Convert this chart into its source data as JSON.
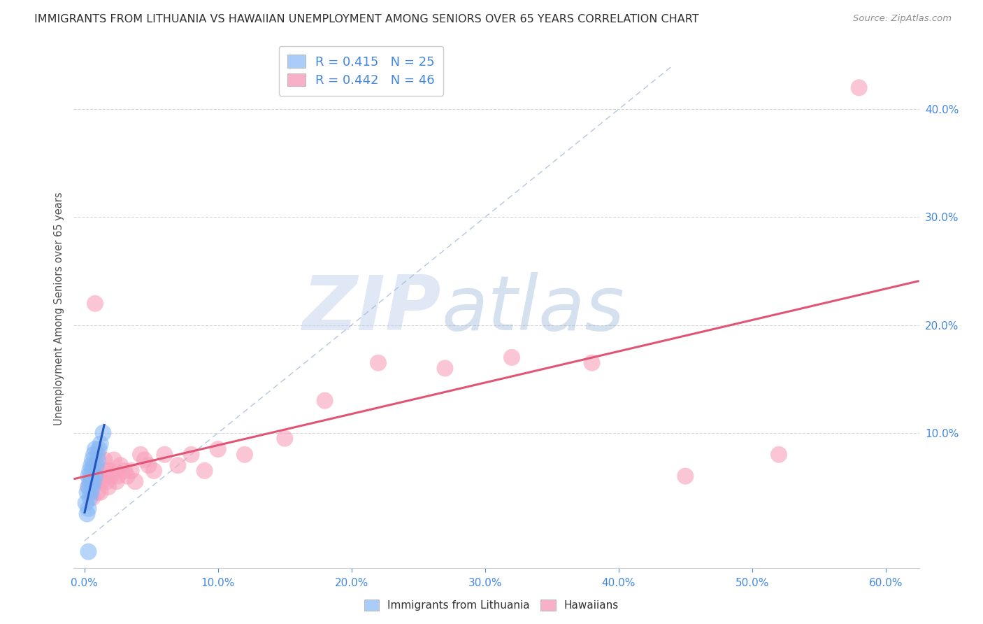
{
  "title": "IMMIGRANTS FROM LITHUANIA VS HAWAIIAN UNEMPLOYMENT AMONG SENIORS OVER 65 YEARS CORRELATION CHART",
  "source": "Source: ZipAtlas.com",
  "ylabel": "Unemployment Among Seniors over 65 years",
  "xlim_min": -0.008,
  "xlim_max": 0.625,
  "ylim_min": -0.025,
  "ylim_max": 0.455,
  "xticks": [
    0.0,
    0.1,
    0.2,
    0.3,
    0.4,
    0.5,
    0.6
  ],
  "yticks": [
    0.1,
    0.2,
    0.3,
    0.4
  ],
  "legend_r1": "R = 0.415   N = 25",
  "legend_r2": "R = 0.442   N = 46",
  "legend_color1": "#aaccf8",
  "legend_color2": "#f8b0c8",
  "lithuania_color": "#88b8f5",
  "hawaii_color": "#f8a0bc",
  "lithuania_line_color": "#2255bb",
  "hawaii_line_color": "#e05575",
  "diagonal_color": "#aabcd8",
  "watermark_zip": "ZIP",
  "watermark_atlas": "atlas",
  "bg_color": "#ffffff",
  "grid_color": "#d8d8d8",
  "title_color": "#303030",
  "source_color": "#909090",
  "ylabel_color": "#505050",
  "tick_color": "#4488dd",
  "bottom_legend_label1": "Immigrants from Lithuania",
  "bottom_legend_label2": "Hawaiians",
  "lithuania_x": [
    0.001,
    0.002,
    0.002,
    0.003,
    0.003,
    0.003,
    0.004,
    0.004,
    0.004,
    0.005,
    0.005,
    0.005,
    0.006,
    0.006,
    0.006,
    0.007,
    0.007,
    0.008,
    0.008,
    0.009,
    0.01,
    0.011,
    0.012,
    0.014,
    0.003
  ],
  "lithuania_y": [
    0.035,
    0.025,
    0.045,
    0.03,
    0.05,
    0.06,
    0.04,
    0.055,
    0.065,
    0.045,
    0.055,
    0.07,
    0.05,
    0.065,
    0.075,
    0.055,
    0.08,
    0.06,
    0.085,
    0.07,
    0.075,
    0.085,
    0.09,
    0.1,
    -0.01
  ],
  "hawaii_x": [
    0.003,
    0.005,
    0.006,
    0.007,
    0.008,
    0.009,
    0.01,
    0.01,
    0.011,
    0.012,
    0.013,
    0.014,
    0.015,
    0.016,
    0.017,
    0.018,
    0.019,
    0.02,
    0.022,
    0.024,
    0.025,
    0.027,
    0.03,
    0.032,
    0.035,
    0.038,
    0.042,
    0.045,
    0.048,
    0.052,
    0.06,
    0.07,
    0.08,
    0.09,
    0.1,
    0.12,
    0.15,
    0.18,
    0.22,
    0.27,
    0.32,
    0.38,
    0.45,
    0.52,
    0.58,
    0.008
  ],
  "hawaii_y": [
    0.05,
    0.06,
    0.04,
    0.07,
    0.055,
    0.06,
    0.045,
    0.08,
    0.06,
    0.045,
    0.055,
    0.06,
    0.075,
    0.065,
    0.055,
    0.05,
    0.065,
    0.06,
    0.075,
    0.055,
    0.06,
    0.07,
    0.065,
    0.06,
    0.065,
    0.055,
    0.08,
    0.075,
    0.07,
    0.065,
    0.08,
    0.07,
    0.08,
    0.065,
    0.085,
    0.08,
    0.095,
    0.13,
    0.165,
    0.16,
    0.17,
    0.165,
    0.06,
    0.08,
    0.42,
    0.22
  ]
}
